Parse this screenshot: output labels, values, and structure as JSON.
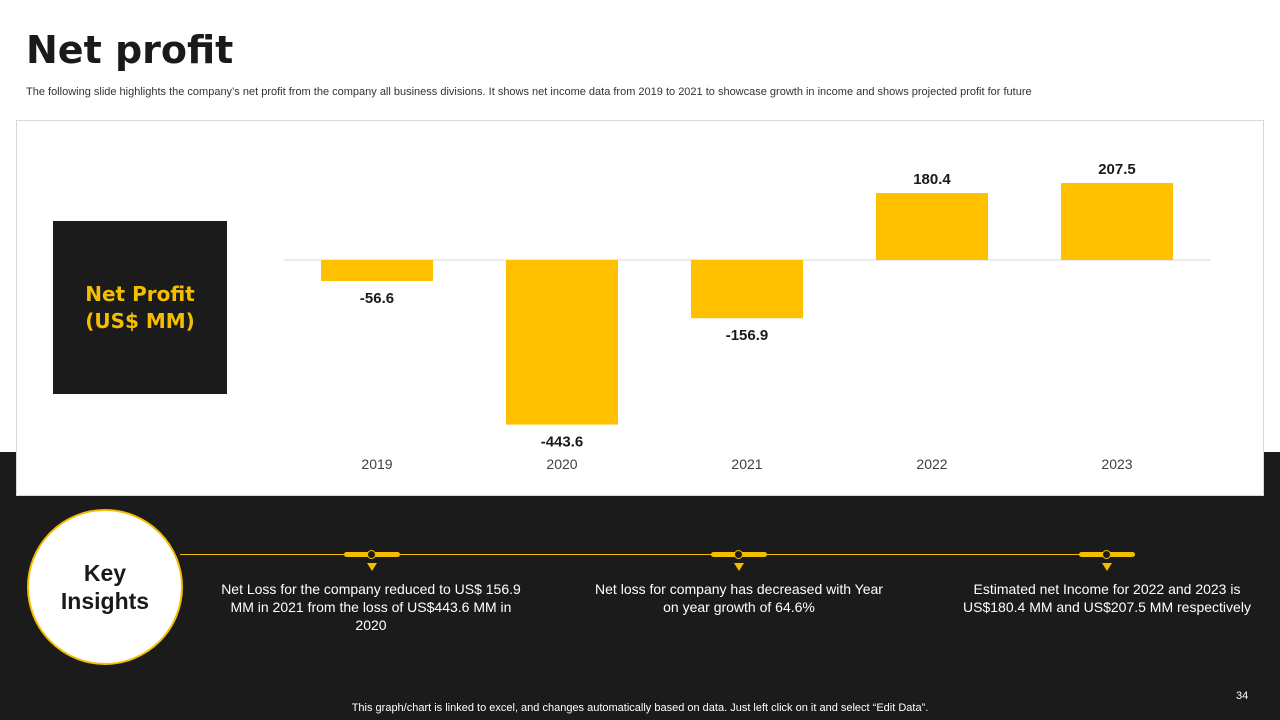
{
  "header": {
    "title": "Net profit",
    "subtitle": "The following slide highlights the company’s net profit from the company all business divisions. It shows net income data from 2019 to 2021 to showcase growth in income and shows projected profit for future"
  },
  "chart_label": "Net Profit\n(US$ MM)",
  "chart_data": {
    "type": "bar",
    "categories": [
      "2019",
      "2020",
      "2021",
      "2022",
      "2023"
    ],
    "values": [
      -56.6,
      -443.6,
      -156.9,
      180.4,
      207.5
    ],
    "data_labels": [
      "-56.6",
      "-443.6",
      "-156.9",
      "180.4",
      "207.5"
    ],
    "title": "",
    "xlabel": "",
    "ylabel": "Net Profit (US$ MM)",
    "ylim": [
      -443.6,
      207.5
    ],
    "grid": false,
    "legend": "none",
    "bar_color": "#FFC000"
  },
  "insights": {
    "title": "Key\nInsights",
    "items": [
      "Net Loss for the company reduced to US$ 156.9 MM  in 2021 from the loss of US$443.6 MM  in 2020",
      "Net loss for company has decreased with Year on year growth of 64.6%",
      "Estimated net Income for  2022 and 2023 is US$180.4 MM  and US$207.5 MM  respectively"
    ]
  },
  "footer": {
    "page_number": "34",
    "note": "This graph/chart is linked to excel,  and changes automatically based on data. Just left click on it and select “Edit Data”."
  },
  "colors": {
    "accent": "#F5BD00",
    "dark": "#1B1B1B"
  }
}
